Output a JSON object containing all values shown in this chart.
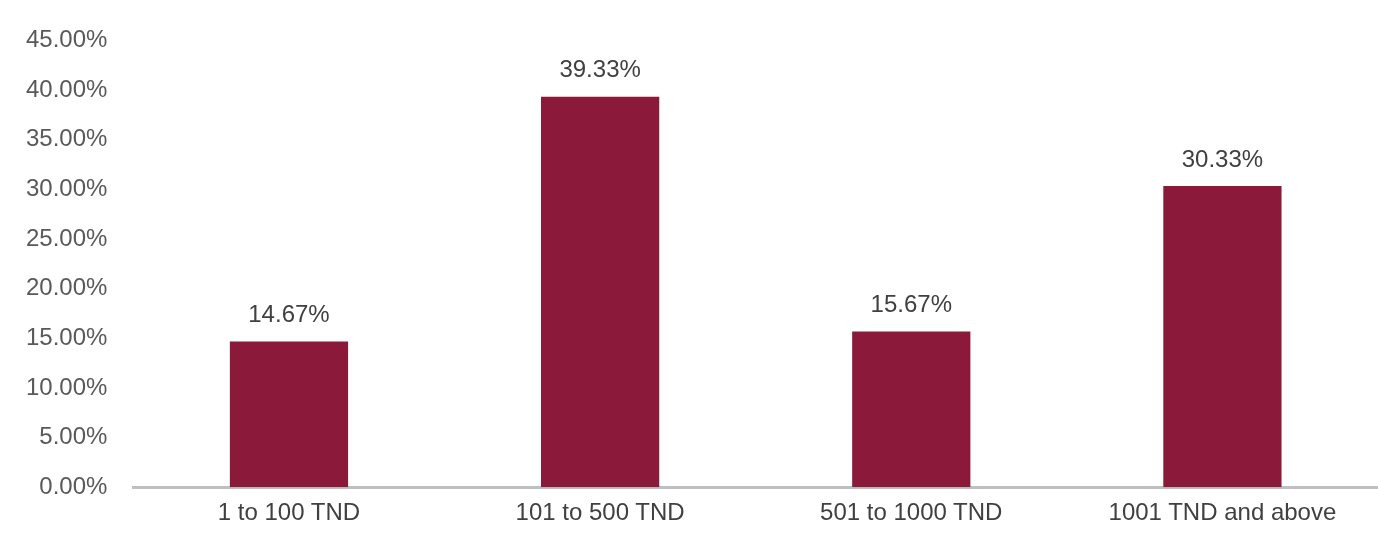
{
  "chart_data": {
    "type": "bar",
    "categories": [
      "1 to 100 TND",
      "101 to 500 TND",
      "501 to 1000 TND",
      "1001 TND and above"
    ],
    "values": [
      14.67,
      39.33,
      15.67,
      30.33
    ],
    "color": "#8b1a3a",
    "value_labels": [
      "14.67%",
      "39.33%",
      "15.67%",
      "30.33%"
    ],
    "ylim": [
      0,
      45
    ],
    "yticks": [
      {
        "value": 0,
        "label": "0.00%"
      },
      {
        "value": 5,
        "label": "5.00%"
      },
      {
        "value": 10,
        "label": "10.00%"
      },
      {
        "value": 15,
        "label": "15.00%"
      },
      {
        "value": 20,
        "label": "20.00%"
      },
      {
        "value": 25,
        "label": "25.00%"
      },
      {
        "value": 30,
        "label": "30.00%"
      },
      {
        "value": 35,
        "label": "35.00%"
      },
      {
        "value": 40,
        "label": "40.00%"
      },
      {
        "value": 45,
        "label": "45.00%"
      }
    ],
    "grid": false,
    "legend": false
  }
}
